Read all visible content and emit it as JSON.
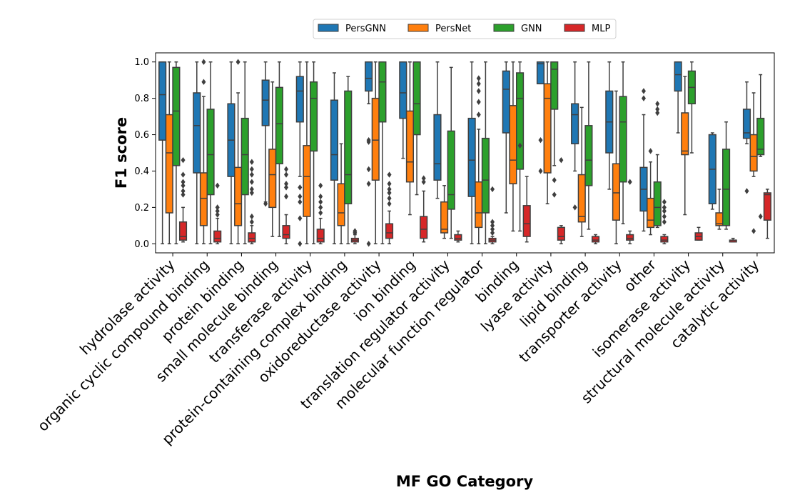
{
  "chart_data": {
    "type": "boxplot",
    "xlabel": "MF GO Category",
    "ylabel": "F1 score",
    "ylim": [
      -0.05,
      1.05
    ],
    "yticks": [
      "0.0",
      "0.2",
      "0.4",
      "0.6",
      "0.8",
      "1.0"
    ],
    "legend_position": "top-center",
    "series": [
      {
        "name": "PersGNN",
        "color": "#1f77b4"
      },
      {
        "name": "PersNet",
        "color": "#ff7f0e"
      },
      {
        "name": "GNN",
        "color": "#2ca02c"
      },
      {
        "name": "MLP",
        "color": "#d62728"
      }
    ],
    "categories": [
      "hydrolase activity",
      "organic cyclic compound binding",
      "protein binding",
      "small molecule binding",
      "transferase activity",
      "protein-containing complex binding",
      "oxidoreductase activity",
      "ion binding",
      "translation regulator activity",
      "molecular function regulator",
      "binding",
      "lyase activity",
      "lipid binding",
      "transporter activity",
      "other",
      "isomerase activity",
      "structural molecule activity",
      "catalytic activity"
    ],
    "boxes": [
      [
        [
          0,
          0.57,
          0.82,
          1.0,
          1.0,
          []
        ],
        [
          0,
          0.17,
          0.5,
          0.71,
          1.0,
          []
        ],
        [
          0,
          0.43,
          0.73,
          0.97,
          1.0,
          []
        ],
        [
          0.01,
          0.02,
          0.04,
          0.12,
          0.2,
          [
            0.27,
            0.29,
            0.32,
            0.34,
            0.38,
            0.46
          ]
        ]
      ],
      [
        [
          0,
          0.39,
          0.65,
          0.83,
          1.0,
          []
        ],
        [
          0,
          0.1,
          0.25,
          0.39,
          0.81,
          [
            0.89,
            1.0
          ]
        ],
        [
          0,
          0.27,
          0.49,
          0.74,
          1.0,
          []
        ],
        [
          0,
          0.01,
          0.03,
          0.07,
          0.14,
          [
            0.16,
            0.18,
            0.2,
            0.32
          ]
        ]
      ],
      [
        [
          0,
          0.37,
          0.57,
          0.77,
          1.0,
          []
        ],
        [
          0,
          0.1,
          0.22,
          0.42,
          0.83,
          [
            1.0
          ]
        ],
        [
          0,
          0.27,
          0.49,
          0.69,
          1.0,
          []
        ],
        [
          0,
          0.01,
          0.03,
          0.06,
          0.1,
          [
            0.12,
            0.15,
            0.28,
            0.3,
            0.34,
            0.38,
            0.41,
            0.45
          ]
        ]
      ],
      [
        [
          0.23,
          0.65,
          0.79,
          0.9,
          1.0,
          [
            0.22
          ]
        ],
        [
          0.04,
          0.2,
          0.38,
          0.52,
          0.89,
          []
        ],
        [
          0.04,
          0.44,
          0.66,
          0.86,
          1.0,
          []
        ],
        [
          0,
          0.03,
          0.05,
          0.1,
          0.16,
          [
            0.26,
            0.31,
            0.33,
            0.38,
            0.41
          ]
        ]
      ],
      [
        [
          0.37,
          0.67,
          0.84,
          0.92,
          1.0,
          [
            0,
            0.14,
            0.23,
            0.26,
            0.31
          ]
        ],
        [
          0,
          0.15,
          0.37,
          0.54,
          1.0,
          []
        ],
        [
          0,
          0.51,
          0.8,
          0.89,
          1.0,
          []
        ],
        [
          0,
          0.01,
          0.03,
          0.08,
          0.14,
          [
            0.17,
            0.2,
            0.23,
            0.26,
            0.32
          ]
        ]
      ],
      [
        [
          0,
          0.35,
          0.49,
          0.79,
          0.94,
          []
        ],
        [
          0,
          0.1,
          0.17,
          0.33,
          0.55,
          []
        ],
        [
          0,
          0.22,
          0.38,
          0.84,
          0.92,
          []
        ],
        [
          0,
          0.01,
          0.02,
          0.03,
          0.05,
          [
            0.06,
            0.07
          ]
        ]
      ],
      [
        [
          0.77,
          0.84,
          0.91,
          1.0,
          1.0,
          [
            0,
            0.33,
            0.41,
            0.56,
            0.57
          ]
        ],
        [
          0,
          0.35,
          0.57,
          0.8,
          1.0,
          []
        ],
        [
          0,
          0.67,
          0.89,
          1.0,
          1.0,
          []
        ],
        [
          0,
          0.03,
          0.06,
          0.11,
          0.18,
          [
            0.22,
            0.25,
            0.28,
            0.3,
            0.33,
            0.38
          ]
        ]
      ],
      [
        [
          0.47,
          0.69,
          0.83,
          1.0,
          1.0,
          []
        ],
        [
          0.16,
          0.34,
          0.45,
          0.73,
          1.0,
          []
        ],
        [
          0.27,
          0.6,
          0.77,
          1.0,
          1.0,
          []
        ],
        [
          0.01,
          0.03,
          0.08,
          0.15,
          0.29,
          [
            0.34,
            0.36
          ]
        ]
      ],
      [
        [
          0.25,
          0.35,
          0.44,
          0.71,
          1.0,
          []
        ],
        [
          0.03,
          0.06,
          0.08,
          0.23,
          0.32,
          []
        ],
        [
          0.03,
          0.19,
          0.27,
          0.62,
          0.97,
          []
        ],
        [
          0.01,
          0.02,
          0.03,
          0.05,
          0.07,
          []
        ]
      ],
      [
        [
          0,
          0.26,
          0.46,
          0.69,
          1.0,
          []
        ],
        [
          0,
          0.09,
          0.17,
          0.34,
          0.63,
          [
            0.71,
            0.78,
            0.84,
            0.88,
            0.91
          ]
        ],
        [
          0,
          0.17,
          0.35,
          0.58,
          1.0,
          []
        ],
        [
          0,
          0.01,
          0.02,
          0.03,
          0.04,
          [
            0.06,
            0.08,
            0.1,
            0.12,
            0.3
          ]
        ]
      ],
      [
        [
          0.17,
          0.61,
          0.85,
          0.95,
          1.0,
          []
        ],
        [
          0.07,
          0.33,
          0.46,
          0.76,
          1.0,
          []
        ],
        [
          0.07,
          0.41,
          0.8,
          0.94,
          1.0,
          [
            0.54
          ]
        ],
        [
          0.01,
          0.04,
          0.11,
          0.21,
          0.37,
          []
        ]
      ],
      [
        [
          0.88,
          0.88,
          0.99,
          1.0,
          1.0,
          [
            0.4,
            0.57
          ]
        ],
        [
          0.22,
          0.39,
          0.8,
          0.88,
          1.0,
          []
        ],
        [
          0.43,
          0.74,
          0.96,
          1.0,
          1.0,
          [
            0.27,
            0.35
          ]
        ],
        [
          0,
          0.02,
          0.04,
          0.09,
          0.1,
          [
            0.46
          ]
        ]
      ],
      [
        [
          0.4,
          0.55,
          0.71,
          0.77,
          1.0,
          [
            0.2
          ]
        ],
        [
          0.04,
          0.12,
          0.15,
          0.38,
          0.75,
          []
        ],
        [
          0.08,
          0.32,
          0.46,
          0.65,
          1.0,
          []
        ],
        [
          0,
          0.01,
          0.02,
          0.04,
          0.05,
          []
        ]
      ],
      [
        [
          0.3,
          0.5,
          0.67,
          0.84,
          1.0,
          []
        ],
        [
          0,
          0.13,
          0.28,
          0.44,
          0.84,
          []
        ],
        [
          0.11,
          0.34,
          0.67,
          0.81,
          1.0,
          []
        ],
        [
          0,
          0.02,
          0.03,
          0.05,
          0.07,
          [
            0.34
          ]
        ]
      ],
      [
        [
          0.07,
          0.18,
          0.3,
          0.42,
          0.71,
          [
            0.8,
            0.84
          ]
        ],
        [
          0.05,
          0.09,
          0.13,
          0.25,
          0.45,
          [
            0.51
          ]
        ],
        [
          0.09,
          0.1,
          0.2,
          0.34,
          0.49,
          [
            0.72,
            0.74,
            0.77
          ]
        ],
        [
          0,
          0.01,
          0.02,
          0.04,
          0.05,
          [
            0.12,
            0.15,
            0.18,
            0.2,
            0.23
          ]
        ]
      ],
      [
        [
          0.61,
          0.84,
          0.93,
          1.0,
          1.0,
          []
        ],
        [
          0.16,
          0.49,
          0.51,
          0.72,
          0.92,
          []
        ],
        [
          0.5,
          0.77,
          0.86,
          0.95,
          1.0,
          []
        ],
        [
          0.02,
          0.02,
          0.04,
          0.06,
          0.09,
          []
        ]
      ],
      [
        [
          0.19,
          0.22,
          0.41,
          0.6,
          0.61,
          []
        ],
        [
          0.08,
          0.1,
          0.11,
          0.17,
          0.3,
          []
        ],
        [
          0.08,
          0.1,
          0.3,
          0.52,
          0.67,
          []
        ],
        [
          0.01,
          0.01,
          0.02,
          0.02,
          0.03,
          []
        ]
      ],
      [
        [
          0.55,
          0.58,
          0.61,
          0.74,
          0.89,
          [
            0.29
          ]
        ],
        [
          0.37,
          0.4,
          0.48,
          0.6,
          0.83,
          [
            0.07
          ]
        ],
        [
          0.48,
          0.49,
          0.52,
          0.69,
          0.93,
          [
            0.15
          ]
        ],
        [
          0.03,
          0.13,
          0.27,
          0.28,
          0.3,
          []
        ]
      ]
    ]
  }
}
